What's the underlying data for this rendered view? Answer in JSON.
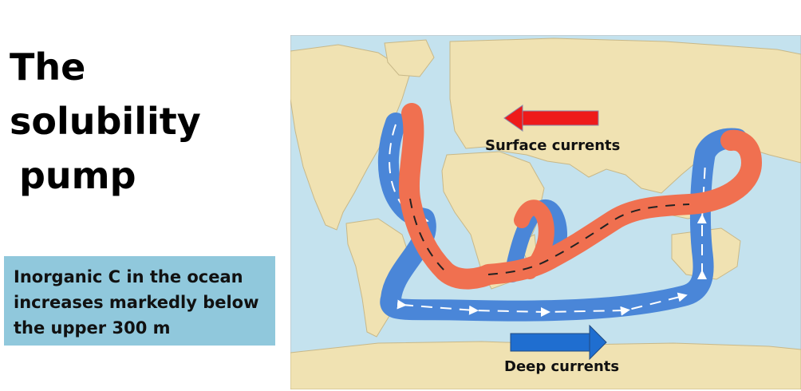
{
  "title": {
    "line1": "The solubility",
    "line2": "pump"
  },
  "info_box": {
    "lines": [
      "Inorganic C in the ocean",
      "increases markedly below",
      "the upper 300 m"
    ]
  },
  "legend": {
    "surface_label": "Surface currents",
    "deep_label": "Deep currents"
  },
  "colors": {
    "surface_current": "#f07050",
    "deep_current": "#4a86d8",
    "ocean": "#c4e2ee",
    "land": "#f0e2b2",
    "info_box": "#90c8dc"
  }
}
